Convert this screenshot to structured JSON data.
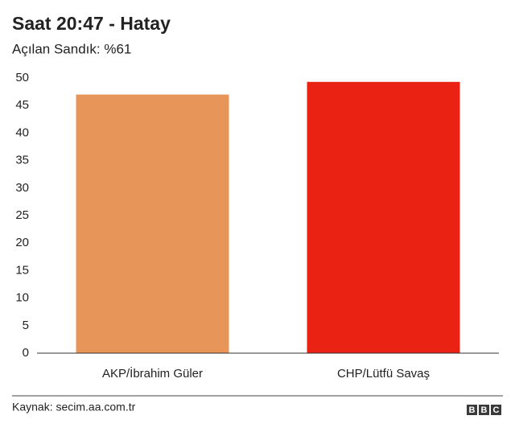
{
  "chart_data": {
    "type": "bar",
    "title": "Saat 20:47 - Hatay",
    "subtitle": "Açılan Sandık: %61",
    "categories": [
      "AKP/İbrahim Güler",
      "CHP/Lütfü Savaş"
    ],
    "values": [
      47,
      49.3
    ],
    "colors": [
      "#e8955a",
      "#ea2213"
    ],
    "ylim": [
      0,
      50
    ],
    "yticks": [
      0,
      5,
      10,
      15,
      20,
      25,
      30,
      35,
      40,
      45,
      50
    ],
    "grid": false,
    "source": "Kaynak: secim.aa.com.tr",
    "brand": [
      "B",
      "B",
      "C"
    ]
  }
}
